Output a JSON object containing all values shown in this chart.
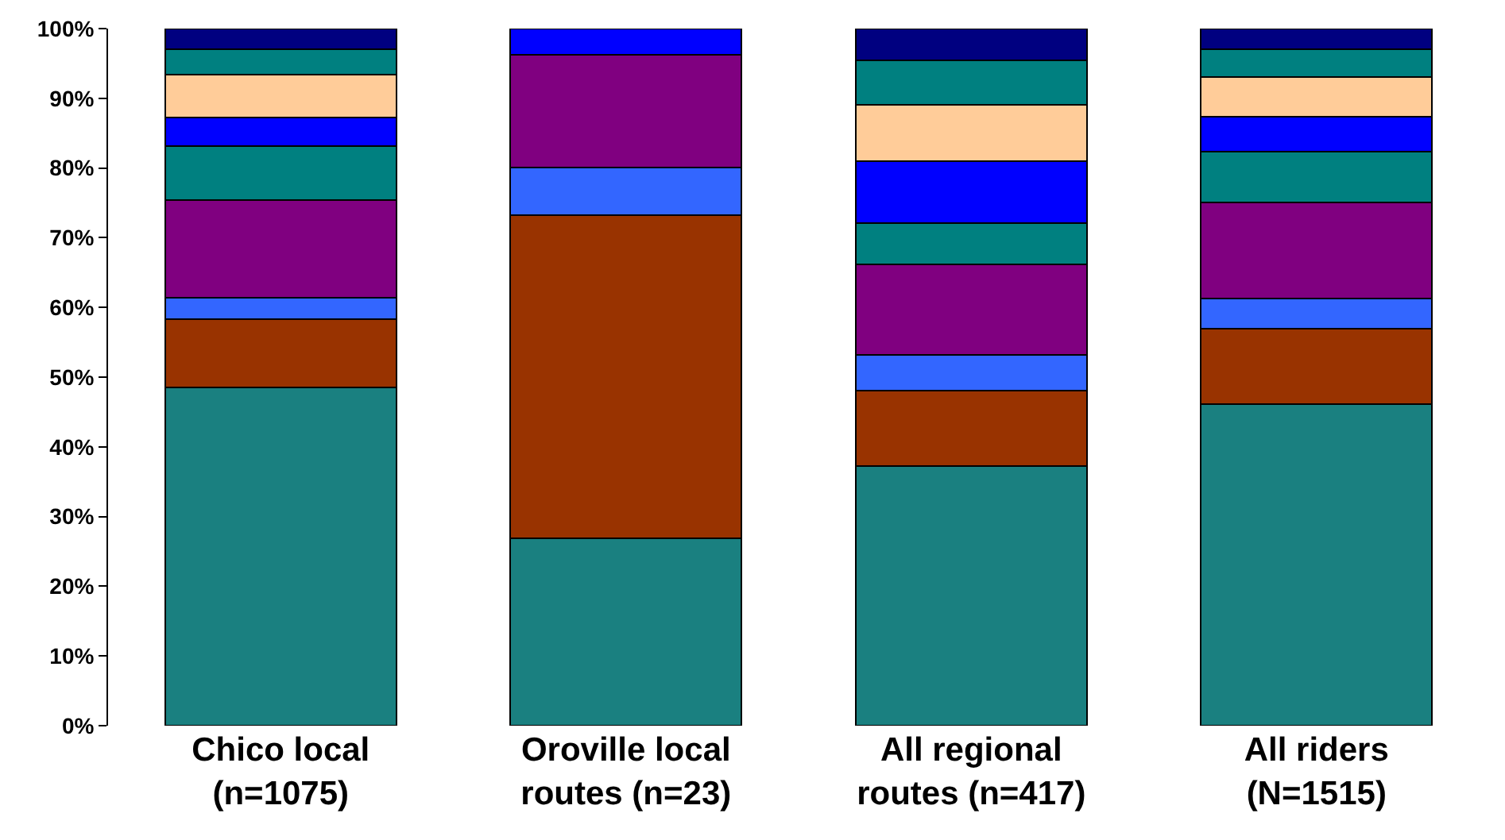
{
  "chart_data": {
    "type": "bar",
    "stacked": true,
    "categories": [
      "Chico local\n(n=1075)",
      "Oroville local\nroutes (n=23)",
      "All regional\nroutes (n=417)",
      "All riders\n(N=1515)"
    ],
    "series": [
      {
        "color": "#1a8080",
        "values": [
          48.5,
          26.9,
          37.2,
          46.1
        ]
      },
      {
        "color": "#993300",
        "values": [
          9.8,
          46.3,
          10.9,
          10.9
        ]
      },
      {
        "color": "#3366ff",
        "values": [
          3.1,
          6.9,
          5.1,
          4.3
        ]
      },
      {
        "color": "#800080",
        "values": [
          14.0,
          16.1,
          13.0,
          13.8
        ]
      },
      {
        "color": "#008080",
        "values": [
          7.8,
          null,
          5.9,
          7.2
        ]
      },
      {
        "color": "#0000ff",
        "values": [
          4.1,
          3.8,
          8.9,
          5.1
        ]
      },
      {
        "color": "#ffcc99",
        "values": [
          6.1,
          null,
          8.1,
          5.7
        ]
      },
      {
        "color": "#008080",
        "values": [
          3.6,
          null,
          6.3,
          3.9
        ]
      },
      {
        "color": "#000080",
        "values": [
          3.0,
          null,
          4.6,
          3.0
        ]
      }
    ],
    "ylim": [
      0,
      100
    ],
    "yticks": [
      {
        "value": 0,
        "label": "0%"
      },
      {
        "value": 10,
        "label": "10%"
      },
      {
        "value": 20,
        "label": "20%"
      },
      {
        "value": 30,
        "label": "30%"
      },
      {
        "value": 40,
        "label": "40%"
      },
      {
        "value": 50,
        "label": "50%"
      },
      {
        "value": 60,
        "label": "60%"
      },
      {
        "value": 70,
        "label": "70%"
      },
      {
        "value": 80,
        "label": "80%"
      },
      {
        "value": 90,
        "label": "90%"
      },
      {
        "value": 100,
        "label": "100%"
      }
    ]
  }
}
